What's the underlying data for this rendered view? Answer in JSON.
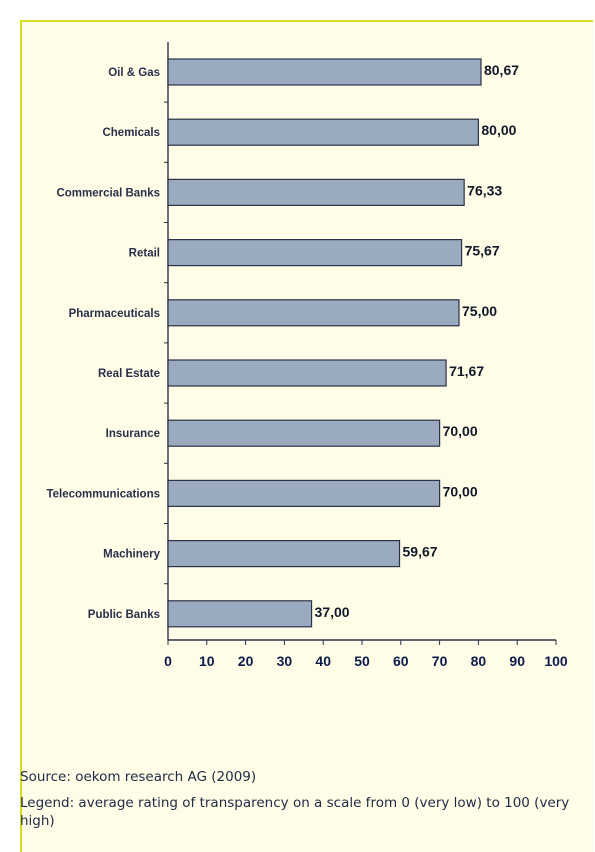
{
  "chart_data": {
    "type": "bar",
    "orientation": "horizontal",
    "categories": [
      "Oil & Gas",
      "Chemicals",
      "Commercial Banks",
      "Retail",
      "Pharmaceuticals",
      "Real Estate",
      "Insurance",
      "Telecommunications",
      "Machinery",
      "Public Banks"
    ],
    "values": [
      80.67,
      80.0,
      76.33,
      75.67,
      75.0,
      71.67,
      70.0,
      70.0,
      59.67,
      37.0
    ],
    "value_labels": [
      "80,67",
      "80,00",
      "76,33",
      "75,67",
      "75,00",
      "71,67",
      "70,00",
      "70,00",
      "59,67",
      "37,00"
    ],
    "xlim": [
      0,
      100
    ],
    "xticks": [
      0,
      10,
      20,
      30,
      40,
      50,
      60,
      70,
      80,
      90,
      100
    ],
    "grid": false,
    "bar_color": "#9aaabf",
    "bar_edge_color": "#2b3147"
  },
  "source_text": "Source: oekom research AG (2009)",
  "legend_text": "Legend: average rating of transparency on a scale from 0 (very low) to 100 (very high)",
  "colors": {
    "frame_border": "#d4de1e",
    "background": "#fffde8"
  }
}
